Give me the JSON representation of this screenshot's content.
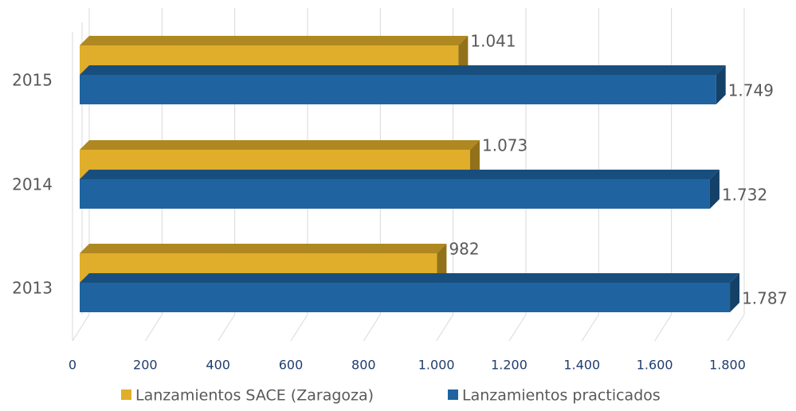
{
  "chart_data": {
    "type": "bar3d_horizontal",
    "categories": [
      "2013",
      "2014",
      "2015"
    ],
    "series": [
      {
        "name": "Lanzamientos SACE (Zaragoza)",
        "color": "#e0ae2a",
        "values": [
          982,
          1073,
          1041
        ],
        "value_labels": [
          "982",
          "1.073",
          "1.041"
        ]
      },
      {
        "name": "Lanzamientos practicados",
        "color": "#1f64a0",
        "values": [
          1787,
          1732,
          1749
        ],
        "value_labels": [
          "1.787",
          "1.732",
          "1.749"
        ]
      }
    ],
    "xlim": [
      0,
      1800
    ],
    "xticks": [
      0,
      200,
      400,
      600,
      800,
      {
        "value": 1000,
        "label": "1.000"
      },
      {
        "value": 1200,
        "label": "1.200"
      },
      {
        "value": 1400,
        "label": "1.400"
      },
      {
        "value": 1600,
        "label": "1.600"
      },
      {
        "value": 1800,
        "label": "1.800"
      }
    ],
    "grid": true,
    "legend": "bottom"
  }
}
